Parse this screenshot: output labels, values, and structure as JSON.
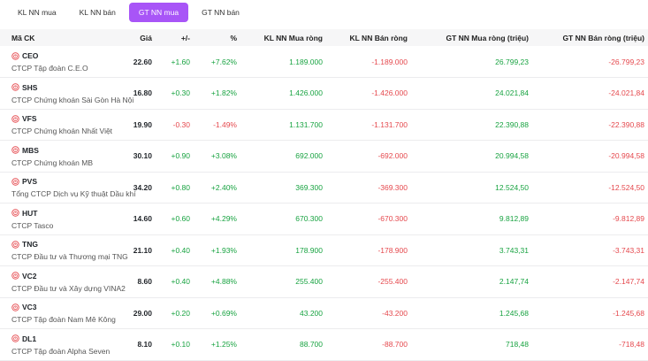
{
  "tabs": [
    {
      "label": "KL NN mua",
      "active": false
    },
    {
      "label": "KL NN bán",
      "active": false
    },
    {
      "label": "GT NN mua",
      "active": true
    },
    {
      "label": "GT NN bán",
      "active": false
    }
  ],
  "headers": {
    "symbol": "Mã CK",
    "price": "Giá",
    "change": "+/-",
    "percent": "%",
    "kl_mua": "KL NN Mua ròng",
    "kl_ban": "KL NN Bán ròng",
    "gt_mua": "GT NN Mua ròng (triệu)",
    "gt_ban": "GT NN Bán ròng (triệu)"
  },
  "colors": {
    "accent": "#a855f7",
    "up": "#18a341",
    "down": "#e5484d"
  },
  "rows": [
    {
      "symbol": "CEO",
      "name": "CTCP Tập đoàn C.E.O",
      "price": "22.60",
      "change": "+1.60",
      "percent": "+7.62%",
      "dir": "up",
      "kl_mua": "1.189.000",
      "kl_ban": "-1.189.000",
      "gt_mua": "26.799,23",
      "gt_ban": "-26.799,23"
    },
    {
      "symbol": "SHS",
      "name": "CTCP Chứng khoán Sài Gòn Hà Nội",
      "price": "16.80",
      "change": "+0.30",
      "percent": "+1.82%",
      "dir": "up",
      "kl_mua": "1.426.000",
      "kl_ban": "-1.426.000",
      "gt_mua": "24.021,84",
      "gt_ban": "-24.021,84"
    },
    {
      "symbol": "VFS",
      "name": "CTCP Chứng khoán Nhất Việt",
      "price": "19.90",
      "change": "-0.30",
      "percent": "-1.49%",
      "dir": "down",
      "kl_mua": "1.131.700",
      "kl_ban": "-1.131.700",
      "gt_mua": "22.390,88",
      "gt_ban": "-22.390,88"
    },
    {
      "symbol": "MBS",
      "name": "CTCP Chứng khoán MB",
      "price": "30.10",
      "change": "+0.90",
      "percent": "+3.08%",
      "dir": "up",
      "kl_mua": "692.000",
      "kl_ban": "-692.000",
      "gt_mua": "20.994,58",
      "gt_ban": "-20.994,58"
    },
    {
      "symbol": "PVS",
      "name": "Tổng CTCP Dịch vụ Kỹ thuật Dầu khí",
      "price": "34.20",
      "change": "+0.80",
      "percent": "+2.40%",
      "dir": "up",
      "kl_mua": "369.300",
      "kl_ban": "-369.300",
      "gt_mua": "12.524,50",
      "gt_ban": "-12.524,50"
    },
    {
      "symbol": "HUT",
      "name": "CTCP Tasco",
      "price": "14.60",
      "change": "+0.60",
      "percent": "+4.29%",
      "dir": "up",
      "kl_mua": "670.300",
      "kl_ban": "-670.300",
      "gt_mua": "9.812,89",
      "gt_ban": "-9.812,89"
    },
    {
      "symbol": "TNG",
      "name": "CTCP Đầu tư và Thương mại TNG",
      "price": "21.10",
      "change": "+0.40",
      "percent": "+1.93%",
      "dir": "up",
      "kl_mua": "178.900",
      "kl_ban": "-178.900",
      "gt_mua": "3.743,31",
      "gt_ban": "-3.743,31"
    },
    {
      "symbol": "VC2",
      "name": "CTCP Đầu tư và Xây dựng VINA2",
      "price": "8.60",
      "change": "+0.40",
      "percent": "+4.88%",
      "dir": "up",
      "kl_mua": "255.400",
      "kl_ban": "-255.400",
      "gt_mua": "2.147,74",
      "gt_ban": "-2.147,74"
    },
    {
      "symbol": "VC3",
      "name": "CTCP Tập đoàn Nam Mê Kông",
      "price": "29.00",
      "change": "+0.20",
      "percent": "+0.69%",
      "dir": "up",
      "kl_mua": "43.200",
      "kl_ban": "-43.200",
      "gt_mua": "1.245,68",
      "gt_ban": "-1.245,68"
    },
    {
      "symbol": "DL1",
      "name": "CTCP Tập đoàn Alpha Seven",
      "price": "8.10",
      "change": "+0.10",
      "percent": "+1.25%",
      "dir": "up",
      "kl_mua": "88.700",
      "kl_ban": "-88.700",
      "gt_mua": "718,48",
      "gt_ban": "-718,48"
    }
  ]
}
